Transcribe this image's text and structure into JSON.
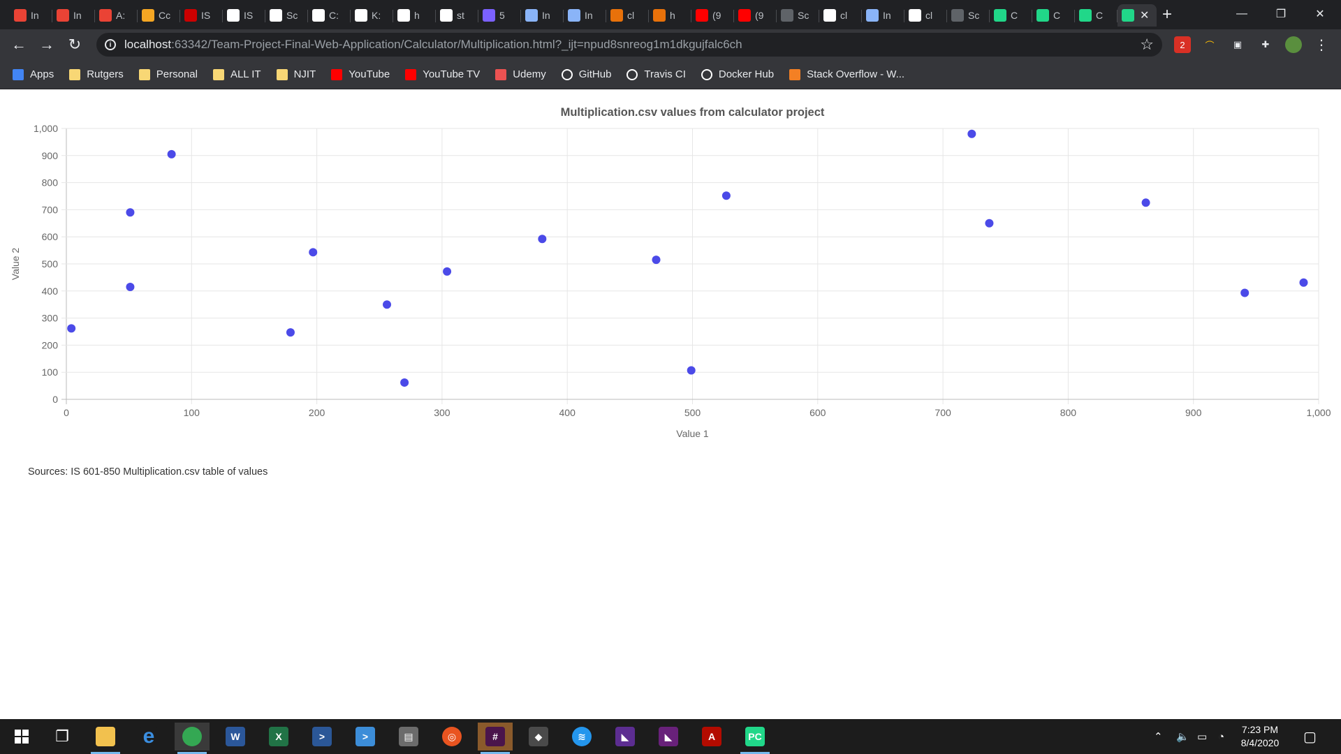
{
  "browser": {
    "tabs": [
      {
        "label": "In",
        "icon": "gmail-icon",
        "color": "#ea4335"
      },
      {
        "label": "In",
        "icon": "gmail-icon",
        "color": "#ea4335"
      },
      {
        "label": "A:",
        "icon": "gmail-icon",
        "color": "#ea4335"
      },
      {
        "label": "Cc",
        "icon": "indeed-icon",
        "color": "#f5a623"
      },
      {
        "label": "IS",
        "icon": "njit-icon",
        "color": "#cc0000"
      },
      {
        "label": "IS",
        "icon": "github-icon",
        "color": "#ffffff"
      },
      {
        "label": "Sc",
        "icon": "github-icon",
        "color": "#ffffff"
      },
      {
        "label": "C:",
        "icon": "github-icon",
        "color": "#ffffff"
      },
      {
        "label": "K:",
        "icon": "github-icon",
        "color": "#ffffff"
      },
      {
        "label": "h",
        "icon": "google-icon",
        "color": "#ffffff"
      },
      {
        "label": "st",
        "icon": "google-icon",
        "color": "#ffffff"
      },
      {
        "label": "5",
        "icon": "app-icon",
        "color": "#7b61ff"
      },
      {
        "label": "In",
        "icon": "book-icon",
        "color": "#8ab4f8"
      },
      {
        "label": "In",
        "icon": "book-icon",
        "color": "#8ab4f8"
      },
      {
        "label": "cl",
        "icon": "shield-icon",
        "color": "#e8710a"
      },
      {
        "label": "h",
        "icon": "shield-icon",
        "color": "#e8710a"
      },
      {
        "label": "(9",
        "icon": "youtube-icon",
        "color": "#ff0000"
      },
      {
        "label": "(9",
        "icon": "youtube-icon",
        "color": "#ff0000"
      },
      {
        "label": "Sc",
        "icon": "globe-icon",
        "color": "#5f6368"
      },
      {
        "label": "cl",
        "icon": "github-icon",
        "color": "#ffffff"
      },
      {
        "label": "In",
        "icon": "book-icon",
        "color": "#8ab4f8"
      },
      {
        "label": "cl",
        "icon": "github-icon",
        "color": "#ffffff"
      },
      {
        "label": "Sc",
        "icon": "globe-icon",
        "color": "#5f6368"
      },
      {
        "label": "C",
        "icon": "pycharm-icon",
        "color": "#21d789"
      },
      {
        "label": "C",
        "icon": "pycharm-icon",
        "color": "#21d789"
      },
      {
        "label": "C",
        "icon": "pycharm-icon",
        "color": "#21d789"
      }
    ],
    "active_tab_icon": "pycharm-icon",
    "url_host": "localhost",
    "url_rest": ":63342/Team-Project-Final-Web-Application/Calculator/Multiplication.html?_ijt=npud8snreog1m1dkgujfalc6ch",
    "extension_badge": "2",
    "bookmarks": [
      {
        "label": "Apps",
        "icon": "apps-grid-icon",
        "color": "#4285f4"
      },
      {
        "label": "Rutgers",
        "icon": "folder-icon",
        "color": "#f8d775"
      },
      {
        "label": "Personal",
        "icon": "folder-icon",
        "color": "#f8d775"
      },
      {
        "label": "ALL IT",
        "icon": "folder-icon",
        "color": "#f8d775"
      },
      {
        "label": "NJIT",
        "icon": "folder-icon",
        "color": "#f8d775"
      },
      {
        "label": "YouTube",
        "icon": "youtube-icon",
        "color": "#ff0000"
      },
      {
        "label": "YouTube TV",
        "icon": "youtube-icon",
        "color": "#ff0000"
      },
      {
        "label": "Udemy",
        "icon": "udemy-icon",
        "color": "#ec5252"
      },
      {
        "label": "GitHub",
        "icon": "github-icon",
        "color": "#ffffff"
      },
      {
        "label": "Travis CI",
        "icon": "globe-icon",
        "color": "#ffffff"
      },
      {
        "label": "Docker Hub",
        "icon": "globe-icon",
        "color": "#ffffff"
      },
      {
        "label": "Stack Overflow - W...",
        "icon": "stackoverflow-icon",
        "color": "#f48024"
      }
    ]
  },
  "chart_data": {
    "type": "scatter",
    "title": "Multiplication.csv values from calculator project",
    "xlabel": "Value 1",
    "ylabel": "Value 2",
    "xlim": [
      0,
      1000
    ],
    "ylim": [
      0,
      1000
    ],
    "xticks": [
      "0",
      "100",
      "200",
      "300",
      "400",
      "500",
      "600",
      "700",
      "800",
      "900",
      "1,000"
    ],
    "yticks": [
      "0",
      "100",
      "200",
      "300",
      "400",
      "500",
      "600",
      "700",
      "800",
      "900",
      "1,000"
    ],
    "grid": true,
    "point_color": "#4b4ae8",
    "points": [
      {
        "x": 4,
        "y": 262
      },
      {
        "x": 51,
        "y": 690
      },
      {
        "x": 51,
        "y": 415
      },
      {
        "x": 84,
        "y": 905
      },
      {
        "x": 179,
        "y": 247
      },
      {
        "x": 197,
        "y": 543
      },
      {
        "x": 256,
        "y": 350
      },
      {
        "x": 270,
        "y": 62
      },
      {
        "x": 304,
        "y": 472
      },
      {
        "x": 380,
        "y": 592
      },
      {
        "x": 471,
        "y": 515
      },
      {
        "x": 499,
        "y": 107
      },
      {
        "x": 527,
        "y": 752
      },
      {
        "x": 723,
        "y": 980
      },
      {
        "x": 737,
        "y": 650
      },
      {
        "x": 862,
        "y": 726
      },
      {
        "x": 941,
        "y": 393
      },
      {
        "x": 988,
        "y": 431
      }
    ]
  },
  "page": {
    "sources_text": "Sources: IS 601-850 Multiplication.csv table of values"
  },
  "taskbar": {
    "apps": [
      {
        "icon": "task-view-icon",
        "color": "#1c1c1c",
        "glyph": "❐"
      },
      {
        "icon": "file-explorer-icon",
        "color": "#f2c14e",
        "glyph": ""
      },
      {
        "icon": "edge-legacy-icon",
        "color": "#1c1c1c",
        "glyph": "e"
      },
      {
        "icon": "chrome-icon",
        "color": "#34a853",
        "glyph": ""
      },
      {
        "icon": "word-icon",
        "color": "#2b579a",
        "glyph": "W"
      },
      {
        "icon": "excel-icon",
        "color": "#217346",
        "glyph": "X"
      },
      {
        "icon": "powershell-icon",
        "color": "#2b5797",
        "glyph": ">"
      },
      {
        "icon": "powershell-ise-icon",
        "color": "#3c8dd8",
        "glyph": ">"
      },
      {
        "icon": "file-manager-icon",
        "color": "#6b6b6b",
        "glyph": "▤"
      },
      {
        "icon": "ubuntu-icon",
        "color": "#e95420",
        "glyph": "◎"
      },
      {
        "icon": "slack-icon",
        "color": "#4a154b",
        "glyph": "#"
      },
      {
        "icon": "git-icon",
        "color": "#4a4a4a",
        "glyph": "◆"
      },
      {
        "icon": "docker-icon",
        "color": "#2496ed",
        "glyph": "≋"
      },
      {
        "icon": "visual-studio-icon",
        "color": "#5c2d91",
        "glyph": "◣"
      },
      {
        "icon": "visual-studio-installer-icon",
        "color": "#68217a",
        "glyph": "◣"
      },
      {
        "icon": "acrobat-icon",
        "color": "#b30b00",
        "glyph": "A"
      },
      {
        "icon": "pycharm-icon",
        "color": "#21d789",
        "glyph": "PC"
      }
    ],
    "time": "7:23 PM",
    "date": "8/4/2020"
  }
}
